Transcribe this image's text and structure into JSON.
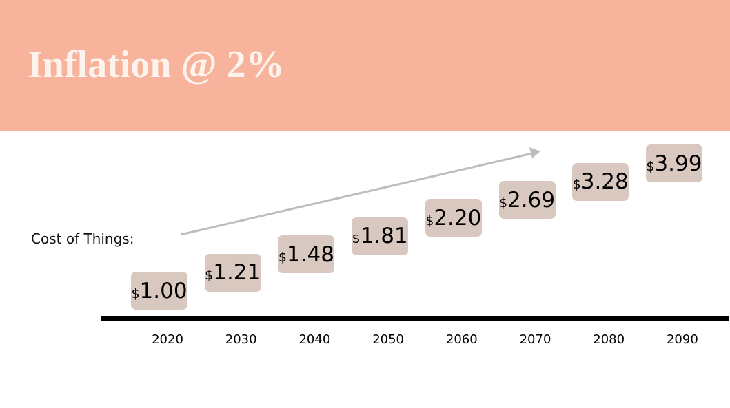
{
  "header": {
    "title": "Inflation @ 2%"
  },
  "label": "Cost of Things:",
  "items": [
    {
      "year": "2020",
      "symbol": "$",
      "amount": "1.00"
    },
    {
      "year": "2030",
      "symbol": "$",
      "amount": "1.21"
    },
    {
      "year": "2040",
      "symbol": "$",
      "amount": "1.48"
    },
    {
      "year": "2050",
      "symbol": "$",
      "amount": "1.81"
    },
    {
      "year": "2060",
      "symbol": "$",
      "amount": "2.20"
    },
    {
      "year": "2070",
      "symbol": "$",
      "amount": "2.69"
    },
    {
      "year": "2080",
      "symbol": "$",
      "amount": "3.28"
    },
    {
      "year": "2090",
      "symbol": "$",
      "amount": "3.99"
    }
  ]
}
